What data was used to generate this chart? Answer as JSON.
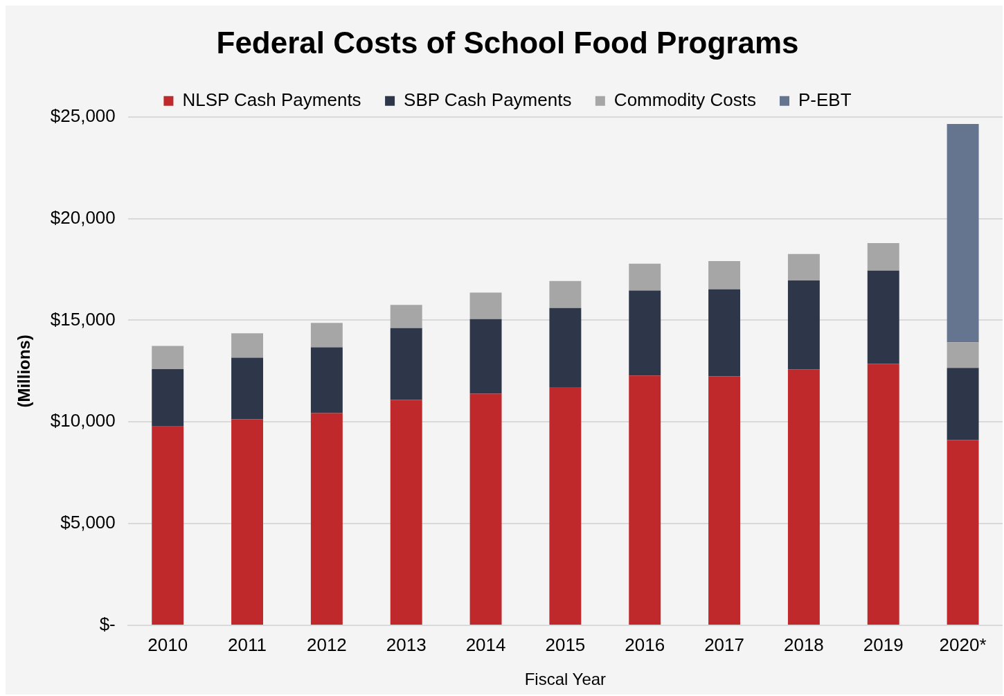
{
  "chart_data": {
    "type": "bar",
    "title": "Federal Costs of School Food Programs",
    "xlabel": "Fiscal Year",
    "ylabel": "(Millions)",
    "categories": [
      "2010",
      "2011",
      "2012",
      "2013",
      "2014",
      "2015",
      "2016",
      "2017",
      "2018",
      "2019",
      "2020*"
    ],
    "stacked": true,
    "grid": "y",
    "legend": "top",
    "ylim": [
      0,
      25000
    ],
    "yticks": [
      {
        "value": 0,
        "label": "$-"
      },
      {
        "value": 5000,
        "label": "$5,000"
      },
      {
        "value": 10000,
        "label": "$10,000"
      },
      {
        "value": 15000,
        "label": "$15,000"
      },
      {
        "value": 20000,
        "label": "$20,000"
      },
      {
        "value": 25000,
        "label": "$25,000"
      }
    ],
    "series": [
      {
        "name": "NLSP Cash Payments",
        "color": "#c0292b",
        "values": [
          9780,
          10130,
          10440,
          11080,
          11390,
          11710,
          12280,
          12250,
          12590,
          12850,
          9110
        ]
      },
      {
        "name": "SBP Cash Payments",
        "color": "#2e374a",
        "values": [
          2820,
          3030,
          3230,
          3540,
          3670,
          3890,
          4180,
          4270,
          4370,
          4590,
          3550
        ]
      },
      {
        "name": "Commodity Costs",
        "color": "#a6a6a6",
        "values": [
          1140,
          1200,
          1200,
          1140,
          1300,
          1330,
          1320,
          1390,
          1300,
          1360,
          1260
        ]
      },
      {
        "name": "P-EBT",
        "color": "#66758f",
        "values": [
          null,
          null,
          null,
          null,
          null,
          null,
          null,
          null,
          null,
          null,
          10730
        ]
      }
    ]
  }
}
